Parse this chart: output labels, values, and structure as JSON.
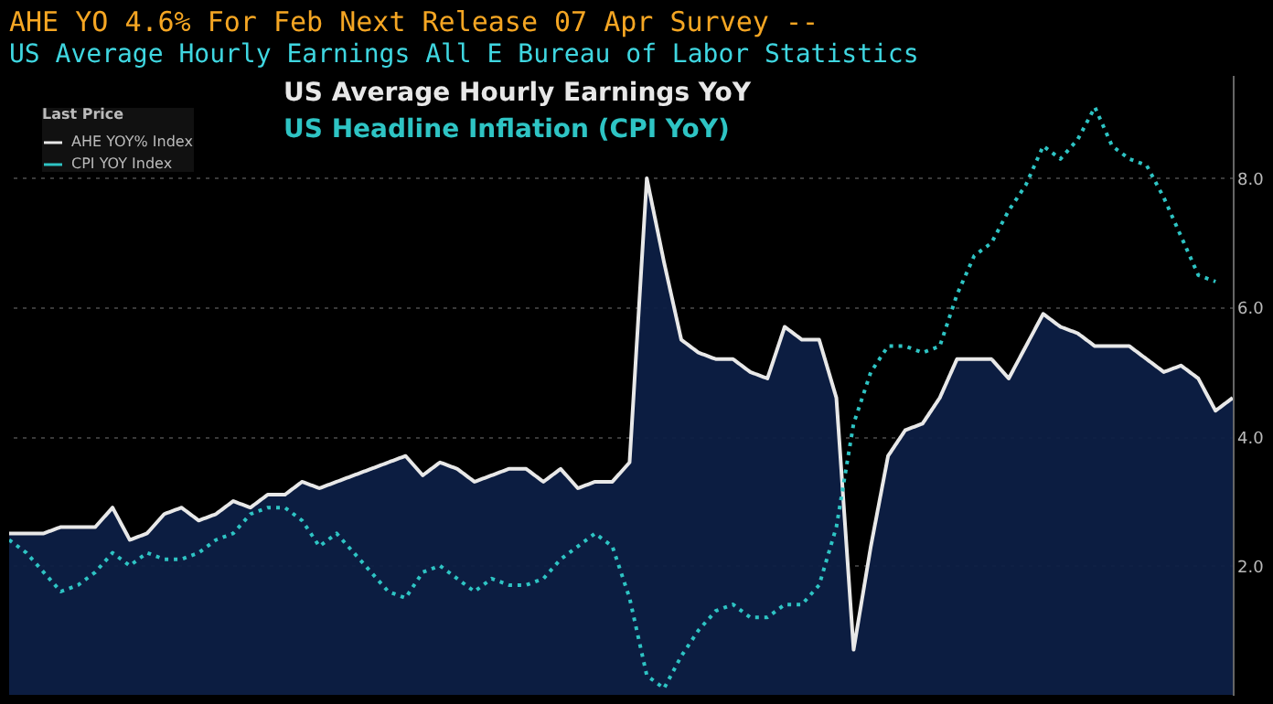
{
  "chart_data": {
    "type": "line",
    "title": "AHE YO 4.6%   For Feb Next Release 07 Apr  Survey --",
    "subtitle": "US Average Hourly Earnings All E Bureau of Labor Statistics",
    "annotations": [
      "US Average Hourly Earnings YoY",
      "US Headline Inflation (CPI YoY)"
    ],
    "legend_title": "Last Price",
    "categories": [
      null,
      null,
      null,
      null,
      null,
      null,
      null,
      null,
      null,
      null,
      null,
      null,
      null,
      null,
      null,
      null,
      null,
      null,
      null,
      null,
      null,
      null,
      null,
      null,
      null,
      null,
      null,
      null,
      null,
      null,
      null,
      null,
      null,
      null,
      null,
      null,
      null,
      null,
      null,
      null,
      null,
      null,
      null,
      null,
      null,
      null,
      null,
      null,
      null,
      null,
      null,
      null,
      null,
      null,
      null,
      null,
      null,
      null,
      null,
      null,
      null,
      null,
      null,
      null,
      null,
      null,
      null,
      null,
      null,
      null,
      null,
      null
    ],
    "series": [
      {
        "name": "AHE YOY% Index",
        "type": "area",
        "color": "#e8e8e8",
        "line_style": "solid",
        "values": [
          2.5,
          2.5,
          2.5,
          2.6,
          2.6,
          2.6,
          2.9,
          2.4,
          2.5,
          2.8,
          2.9,
          2.7,
          2.8,
          3.0,
          2.9,
          3.1,
          3.1,
          3.3,
          3.2,
          3.3,
          3.4,
          3.5,
          3.6,
          3.7,
          3.4,
          3.6,
          3.5,
          3.3,
          3.4,
          3.5,
          3.5,
          3.3,
          3.5,
          3.2,
          3.3,
          3.3,
          3.6,
          8.0,
          6.7,
          5.5,
          5.3,
          5.2,
          5.2,
          5.0,
          4.9,
          5.7,
          5.5,
          5.5,
          4.6,
          0.7,
          2.3,
          3.7,
          4.1,
          4.2,
          4.6,
          5.2,
          5.2,
          5.2,
          4.9,
          5.4,
          5.9,
          5.7,
          5.6,
          5.4,
          5.4,
          5.4,
          5.2,
          5.0,
          5.1,
          4.9,
          4.4,
          4.6
        ]
      },
      {
        "name": "CPI YOY Index",
        "color": "#2ec4c4",
        "line_style": "dotted",
        "values": [
          2.4,
          2.2,
          1.9,
          1.6,
          1.7,
          1.9,
          2.2,
          2.0,
          2.2,
          2.1,
          2.1,
          2.2,
          2.4,
          2.5,
          2.8,
          2.9,
          2.9,
          2.7,
          2.3,
          2.5,
          2.2,
          1.9,
          1.6,
          1.5,
          1.9,
          2.0,
          1.8,
          1.6,
          1.8,
          1.7,
          1.7,
          1.8,
          2.1,
          2.3,
          2.5,
          2.3,
          1.5,
          0.3,
          0.1,
          0.6,
          1.0,
          1.3,
          1.4,
          1.2,
          1.2,
          1.4,
          1.4,
          1.7,
          2.6,
          4.2,
          5.0,
          5.4,
          5.4,
          5.3,
          5.4,
          6.2,
          6.8,
          7.0,
          7.5,
          7.9,
          8.5,
          8.3,
          8.6,
          9.1,
          8.5,
          8.3,
          8.2,
          7.7,
          7.1,
          6.5,
          6.4,
          null
        ]
      }
    ],
    "ylim": [
      0,
      9.6
    ],
    "yticks": [
      {
        "value": 2,
        "label": "2.0"
      },
      {
        "value": 4,
        "label": "4.0"
      },
      {
        "value": 6,
        "label": "6.0"
      },
      {
        "value": 8,
        "label": "8.0"
      }
    ],
    "tick_labels": "y",
    "grid": "y",
    "legend": "top left",
    "marker": "none"
  }
}
